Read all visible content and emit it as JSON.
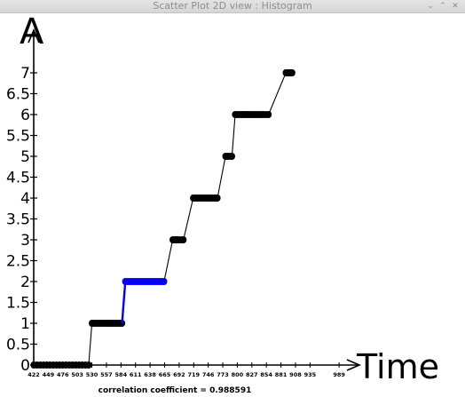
{
  "window": {
    "title": "Scatter Plot 2D view : Histogram",
    "controls": [
      {
        "name": "minimize-button",
        "icon": "chevron-down-icon",
        "glyph": "⌄"
      },
      {
        "name": "maximize-button",
        "icon": "chevron-up-icon",
        "glyph": "⌃"
      },
      {
        "name": "close-button",
        "icon": "close-icon",
        "glyph": "✕"
      }
    ]
  },
  "chart_data": {
    "type": "scatter",
    "title": "",
    "xlabel": "Time",
    "ylabel": "A",
    "footer": "correlation coefficient = 0.988591",
    "xlim": [
      420,
      965
    ],
    "ylim": [
      0,
      7.5
    ],
    "x_ticks": [
      "422",
      "449",
      "476",
      "503",
      "530",
      "557",
      "584",
      "611",
      "638",
      "665",
      "692",
      "719",
      "746",
      "773",
      "800",
      "827",
      "854",
      "881",
      "908",
      "935",
      "989"
    ],
    "y_ticks": [
      "0",
      "0.5",
      "1",
      "1.5",
      "2",
      "2.5",
      "3",
      "3.5",
      "4",
      "4.5",
      "5",
      "5.5",
      "6",
      "6.5",
      "7"
    ],
    "colors": {
      "points": "#000000",
      "highlight": "#0000ff"
    },
    "series": [
      {
        "color": "#000000",
        "x": [
          422,
          428,
          434,
          440,
          446,
          452,
          458,
          464,
          470,
          476,
          482,
          488,
          494,
          500,
          506,
          512,
          518,
          524,
          530,
          534,
          538,
          542,
          546,
          550,
          554,
          558,
          562,
          566,
          570,
          574,
          578,
          582,
          586
        ],
        "y": [
          0,
          0,
          0,
          0,
          0,
          0,
          0,
          0,
          0,
          0,
          0,
          0,
          0,
          0,
          0,
          0,
          0,
          0,
          1,
          1,
          1,
          1,
          1,
          1,
          1,
          1,
          1,
          1,
          1,
          1,
          1,
          1,
          1
        ]
      },
      {
        "color": "#0000ff",
        "x": [
          592,
          596,
          600,
          604,
          608,
          612,
          616,
          620,
          624,
          628,
          632,
          636,
          640,
          644,
          648,
          652,
          656,
          660,
          664
        ],
        "y": [
          2,
          2,
          2,
          2,
          2,
          2,
          2,
          2,
          2,
          2,
          2,
          2,
          2,
          2,
          2,
          2,
          2,
          2,
          2
        ]
      },
      {
        "color": "#000000",
        "x": [
          680,
          683,
          686,
          689,
          692,
          697,
          700,
          718,
          721,
          724,
          727,
          730,
          733,
          736,
          739,
          742,
          745,
          748,
          751,
          754,
          757,
          760,
          763,
          778,
          782,
          786,
          790,
          796,
          800,
          804,
          808,
          812,
          816,
          820,
          824,
          828,
          832,
          836,
          840,
          844,
          848,
          853,
          858,
          890,
          893,
          896,
          899,
          902
        ],
        "y": [
          3,
          3,
          3,
          3,
          3,
          3,
          3,
          4,
          4,
          4,
          4,
          4,
          4,
          4,
          4,
          4,
          4,
          4,
          4,
          4,
          4,
          4,
          4,
          5,
          5,
          5,
          5,
          6,
          6,
          6,
          6,
          6,
          6,
          6,
          6,
          6,
          6,
          6,
          6,
          6,
          6,
          6,
          6,
          7,
          7,
          7,
          7,
          7
        ]
      }
    ]
  }
}
